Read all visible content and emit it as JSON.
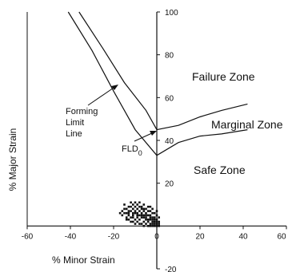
{
  "chart_data": {
    "type": "scatter",
    "xlabel": "% Minor Strain",
    "ylabel": "% Major Strain",
    "xlim": [
      -60,
      60
    ],
    "ylim": [
      -20,
      100
    ],
    "x_ticks": [
      -60,
      -40,
      -20,
      0,
      20,
      40,
      60
    ],
    "y_ticks": [
      -20,
      0,
      20,
      40,
      60,
      80,
      100
    ],
    "x_tick_labels": [
      "-60",
      "-40",
      "-20",
      "0",
      "20",
      "40",
      "60"
    ],
    "y_tick_labels": [
      "-20",
      "",
      "20",
      "40",
      "60",
      "80",
      "100"
    ],
    "grid": false,
    "zones": [
      "Failure Zone",
      "Marginal Zone",
      "Safe Zone"
    ],
    "annotations": {
      "forming_limit_line": [
        "Forming",
        "Limit",
        "Line"
      ],
      "fld0_main": "FLD",
      "fld0_sub": "0"
    },
    "series": [
      {
        "role": "forming-limit-line",
        "x": [
          -41,
          -30,
          -20,
          -10,
          0,
          10,
          20,
          30,
          42
        ],
        "y": [
          100,
          82,
          63,
          45,
          33,
          39,
          42,
          43,
          45
        ]
      },
      {
        "role": "marginal-line",
        "x": [
          -36,
          -25,
          -15,
          -5,
          0,
          10,
          20,
          30,
          42
        ],
        "y": [
          100,
          83,
          67,
          54,
          45,
          47,
          51,
          54,
          57
        ]
      },
      {
        "role": "measured-strains",
        "points": [
          [
            -15,
            10
          ],
          [
            -14,
            8
          ],
          [
            -13,
            9
          ],
          [
            -12,
            7
          ],
          [
            -11,
            8
          ],
          [
            -10,
            6
          ],
          [
            -9,
            5
          ],
          [
            -8,
            7
          ],
          [
            -7,
            6
          ],
          [
            -6,
            5
          ],
          [
            -5,
            4
          ],
          [
            -4,
            5
          ],
          [
            -3,
            3
          ],
          [
            -2,
            4
          ],
          [
            -1,
            2
          ],
          [
            0,
            3
          ],
          [
            -14,
            6
          ],
          [
            -13,
            5
          ],
          [
            -12,
            4
          ],
          [
            -11,
            5
          ],
          [
            -10,
            3
          ],
          [
            -9,
            4
          ],
          [
            -8,
            3
          ],
          [
            -7,
            4
          ],
          [
            -6,
            2
          ],
          [
            -5,
            3
          ],
          [
            -4,
            2
          ],
          [
            -3,
            1
          ],
          [
            -2,
            2
          ],
          [
            -1,
            1
          ],
          [
            0,
            1
          ],
          [
            1,
            2
          ],
          [
            -12,
            9
          ],
          [
            -11,
            10
          ],
          [
            -10,
            9
          ],
          [
            -9,
            8
          ],
          [
            -8,
            9
          ],
          [
            -7,
            8
          ],
          [
            -6,
            7
          ],
          [
            -5,
            6
          ],
          [
            -4,
            7
          ],
          [
            -3,
            5
          ],
          [
            -2,
            6
          ],
          [
            -1,
            4
          ],
          [
            0,
            5
          ],
          [
            1,
            4
          ],
          [
            -16,
            7
          ],
          [
            -15,
            6
          ],
          [
            -14,
            4
          ],
          [
            -13,
            3
          ],
          [
            -11,
            2
          ],
          [
            -9,
            2
          ],
          [
            -7,
            1
          ],
          [
            -5,
            1
          ],
          [
            -3,
            0
          ],
          [
            -1,
            0
          ],
          [
            0,
            0
          ],
          [
            1,
            1
          ],
          [
            -8,
            11
          ],
          [
            -6,
            10
          ],
          [
            -4,
            9
          ],
          [
            -2,
            8
          ],
          [
            -12,
            11
          ],
          [
            -9,
            10
          ],
          [
            -7,
            9
          ],
          [
            -5,
            8
          ],
          [
            -3,
            7
          ],
          [
            -1,
            6
          ],
          [
            0,
            7
          ],
          [
            -10,
            7
          ],
          [
            -8,
            5
          ],
          [
            -6,
            4
          ],
          [
            -4,
            3
          ],
          [
            -2,
            1
          ],
          [
            -15,
            8
          ],
          [
            -13,
            7
          ],
          [
            -11,
            6
          ],
          [
            -9,
            6
          ],
          [
            -7,
            5
          ],
          [
            -5,
            5
          ],
          [
            -3,
            4
          ],
          [
            -1,
            3
          ],
          [
            0,
            2
          ],
          [
            -16,
            5
          ],
          [
            -14,
            3
          ],
          [
            -12,
            2
          ],
          [
            -10,
            1
          ],
          [
            -8,
            1
          ],
          [
            -6,
            0
          ],
          [
            -4,
            0
          ],
          [
            -2,
            0
          ],
          [
            -17,
            6
          ],
          [
            -10,
            11
          ],
          [
            -6,
            8
          ],
          [
            -2,
            3
          ],
          [
            1,
            0
          ],
          [
            -3,
            9
          ],
          [
            -11,
            4
          ],
          [
            -13,
            6
          ]
        ]
      }
    ]
  }
}
